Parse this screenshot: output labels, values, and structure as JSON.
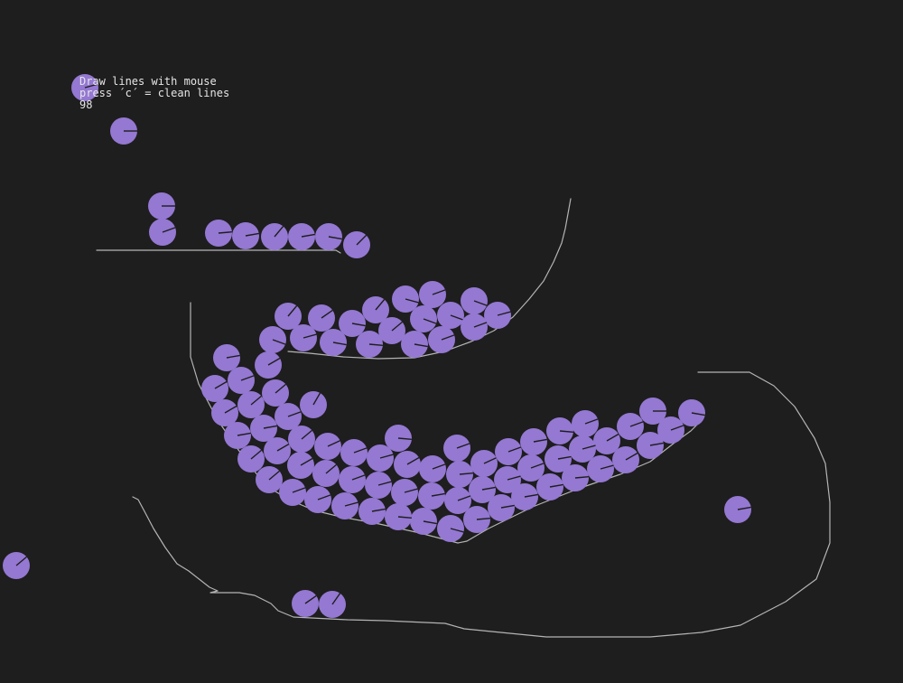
{
  "hud": {
    "instruction_draw": "Draw lines with mouse",
    "instruction_clean": "press ´c´ = clean lines",
    "count": "98"
  },
  "colors": {
    "background": "#1e1e1e",
    "ball_fill": "#9478d2",
    "ball_marker": "#1e1e1e",
    "line_stroke": "#b4b4b4",
    "hud_text": "#e6e6e6"
  }
}
